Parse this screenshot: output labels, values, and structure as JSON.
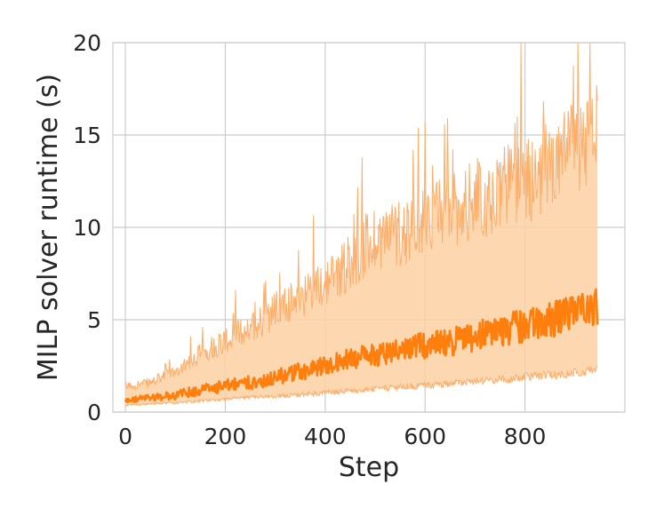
{
  "chart_data": {
    "type": "line",
    "title": "",
    "xlabel": "Step",
    "ylabel": "MILP solver runtime (s)",
    "xlim": [
      -25,
      1000
    ],
    "ylim": [
      0,
      20
    ],
    "x_ticks": [
      0,
      200,
      400,
      600,
      800
    ],
    "y_ticks": [
      0,
      5,
      10,
      15,
      20
    ],
    "grid": true,
    "legend": "none",
    "colors": {
      "line": "#ff7f0e",
      "band": "#fdd0a2",
      "band_edge": "#fdae6b",
      "grid": "#cccccc",
      "frame": "#cccccc"
    },
    "series": [
      {
        "role": "median",
        "x": [
          0,
          50,
          100,
          150,
          200,
          250,
          300,
          350,
          400,
          450,
          500,
          550,
          600,
          650,
          700,
          750,
          800,
          850,
          900,
          945
        ],
        "y": [
          0.6,
          0.8,
          0.9,
          1.2,
          1.4,
          1.6,
          1.9,
          2.2,
          2.5,
          2.9,
          3.1,
          3.4,
          3.6,
          3.8,
          4.1,
          4.4,
          4.7,
          5.0,
          5.3,
          5.7
        ],
        "lower": [
          0.35,
          0.45,
          0.5,
          0.6,
          0.7,
          0.8,
          0.85,
          0.95,
          1.05,
          1.15,
          1.25,
          1.35,
          1.45,
          1.55,
          1.65,
          1.75,
          1.9,
          2.0,
          2.1,
          2.3
        ],
        "upper": [
          1.4,
          1.6,
          2.2,
          3.2,
          3.9,
          4.6,
          5.5,
          6.2,
          7.0,
          8.2,
          9.5,
          9.8,
          10.2,
          11.0,
          11.5,
          12.0,
          12.5,
          13.3,
          14.0,
          15.0
        ]
      }
    ]
  }
}
